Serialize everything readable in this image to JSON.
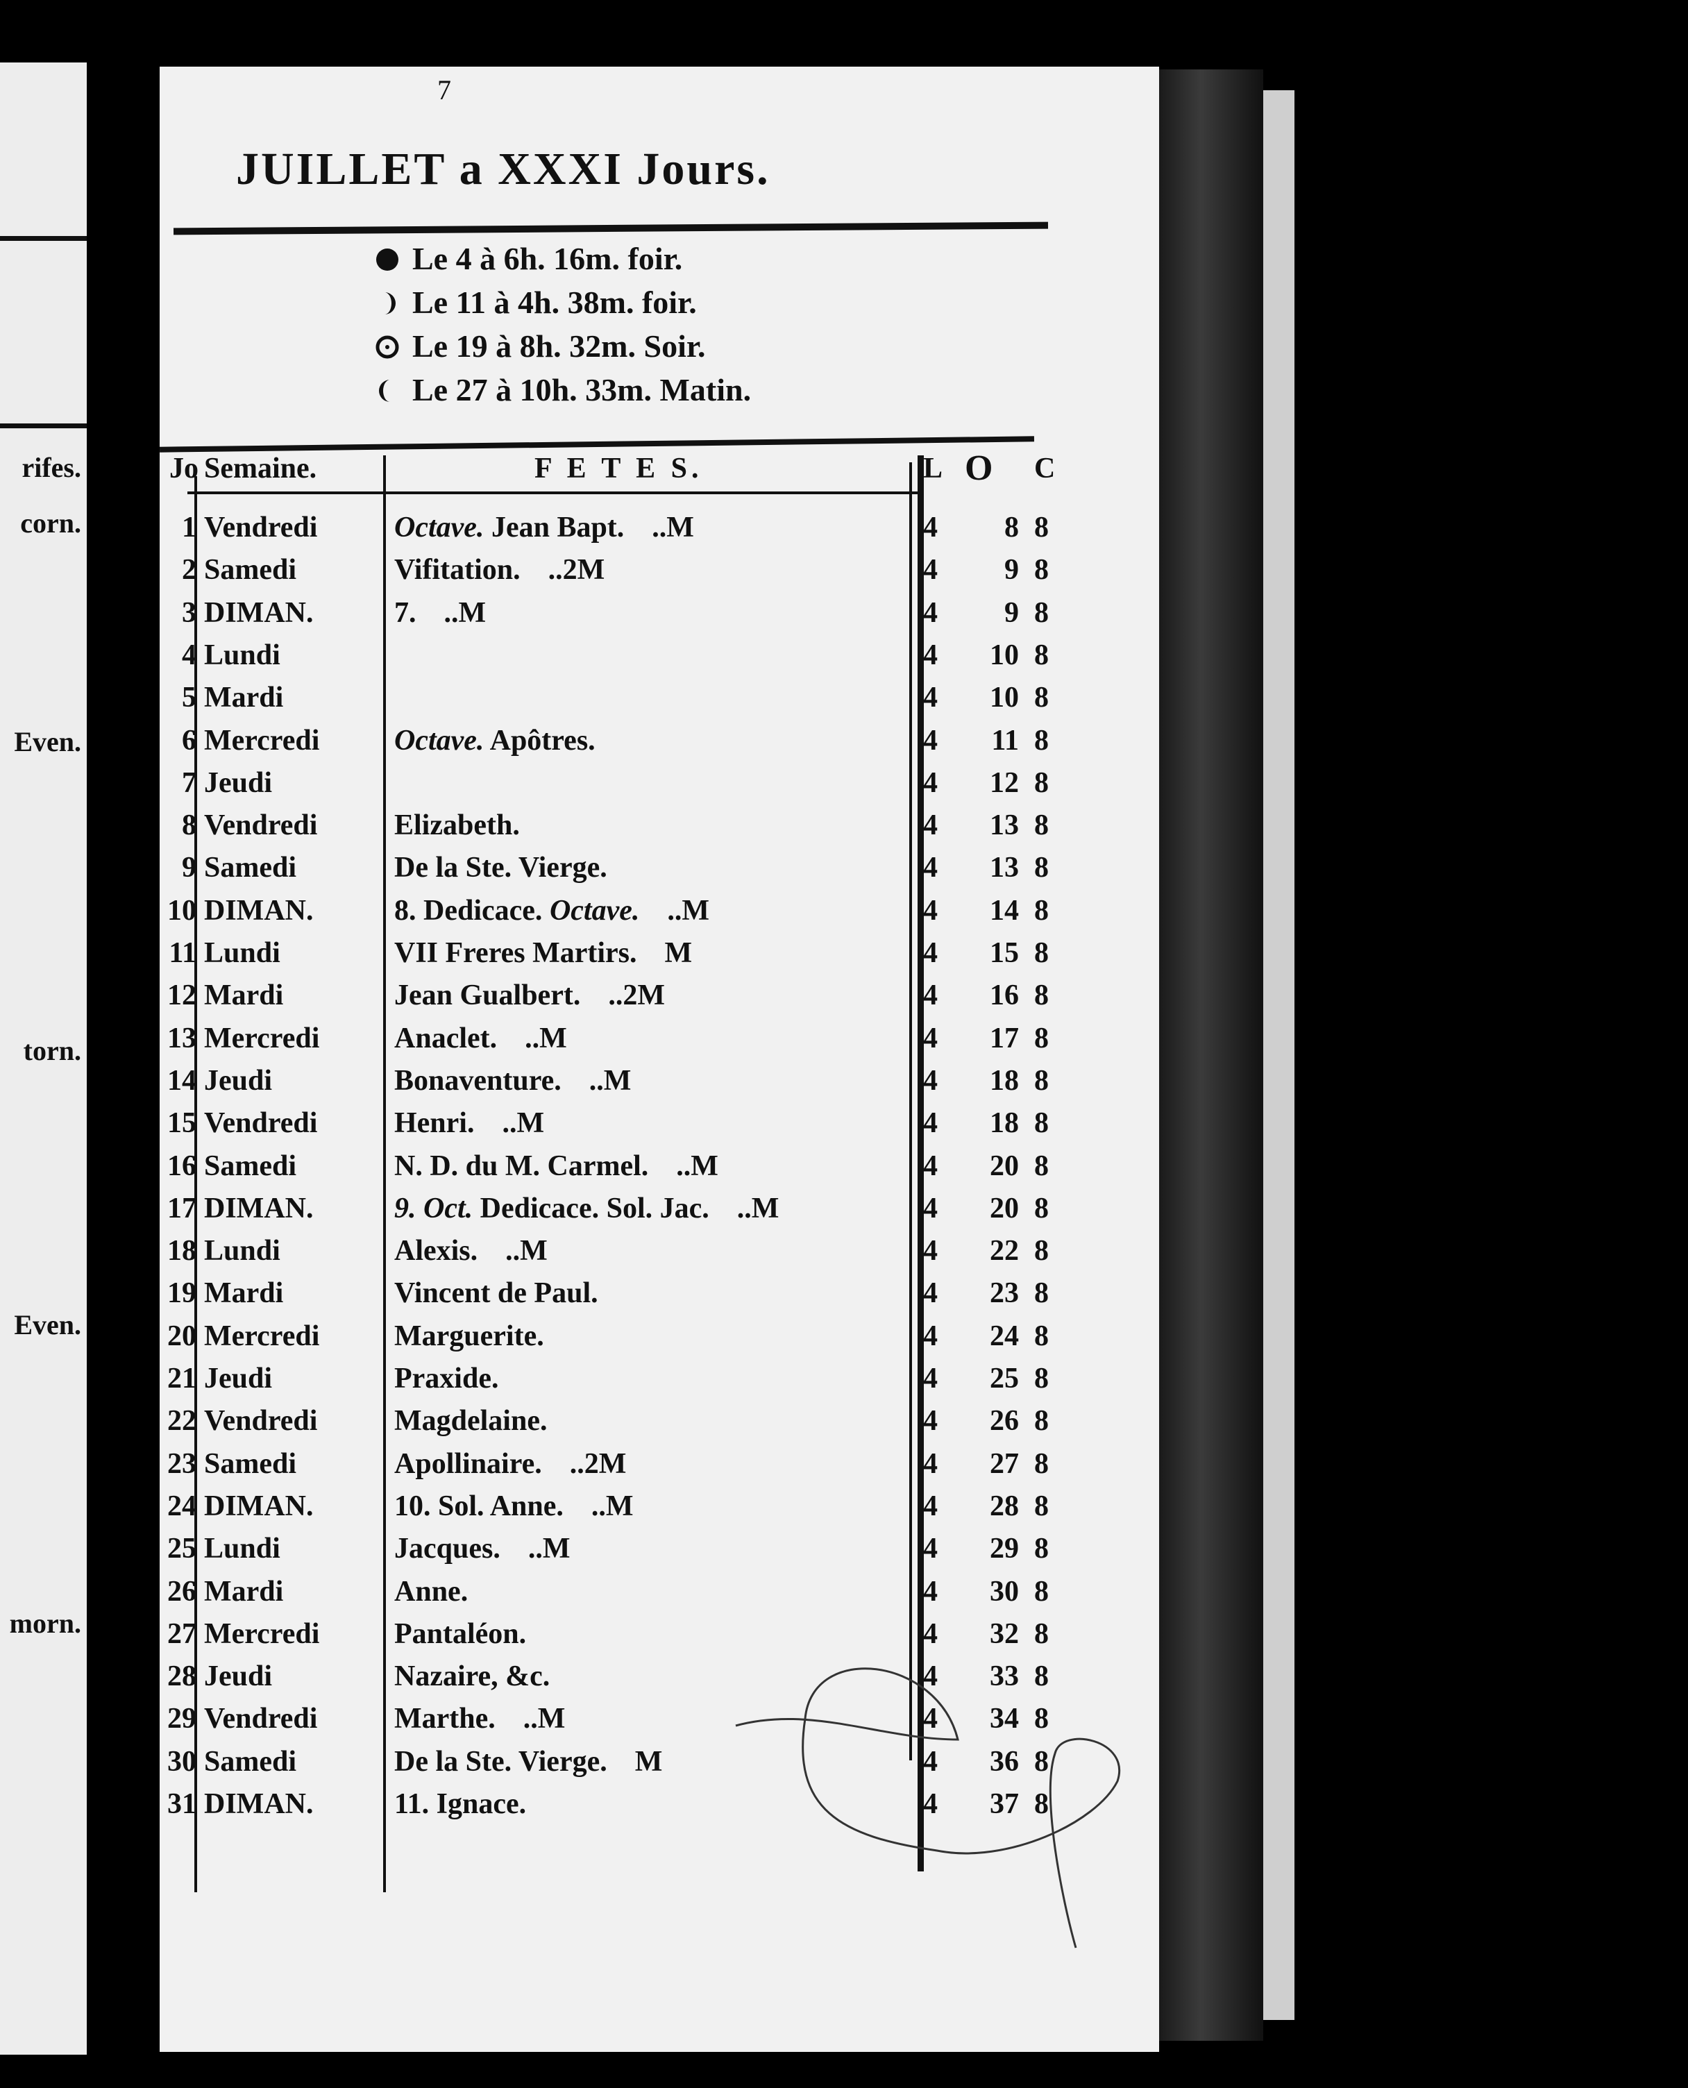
{
  "left_page_fragments": [
    "rifes.",
    "corn.",
    "Even.",
    "torn.",
    "Even.",
    "morn."
  ],
  "page_number": "7",
  "title": "JUILLET a XXXI Jours.",
  "moon_phases": [
    {
      "icon": "new-moon-icon",
      "text": "Le 4 à 6h. 16m. foir."
    },
    {
      "icon": "first-quarter-icon",
      "text": "Le 11 à 4h. 38m. foir."
    },
    {
      "icon": "full-moon-icon",
      "text": "Le 19 à 8h. 32m. Soir."
    },
    {
      "icon": "last-quarter-icon",
      "text": "Le 27 à 10h. 33m. Matin."
    }
  ],
  "table": {
    "headers": {
      "jo": "Jo",
      "semaine": "Semaine.",
      "fetes": "F E T E S.",
      "l": "L",
      "o": "O",
      "c": "C"
    },
    "rows": [
      {
        "jo": "1",
        "semaine": "Vendredi",
        "fete_italic": "Octave.",
        "fete": " Jean Bapt.",
        "mark": "..M",
        "l": "4",
        "o": "8",
        "c": "8"
      },
      {
        "jo": "2",
        "semaine": "Samedi",
        "fete": "Vifitation.",
        "mark": "..2M",
        "l": "4",
        "o": "9",
        "c": "8"
      },
      {
        "jo": "3",
        "semaine": "DIMAN.",
        "fete": "7.",
        "mark": "..M",
        "l": "4",
        "o": "9",
        "c": "8"
      },
      {
        "jo": "4",
        "semaine": "Lundi",
        "fete": "",
        "mark": "",
        "l": "4",
        "o": "10",
        "c": "8"
      },
      {
        "jo": "5",
        "semaine": "Mardi",
        "fete": "",
        "mark": "",
        "l": "4",
        "o": "10",
        "c": "8"
      },
      {
        "jo": "6",
        "semaine": "Mercredi",
        "fete_italic": "Octave.",
        "fete": " Apôtres.",
        "mark": "",
        "l": "4",
        "o": "11",
        "c": "8"
      },
      {
        "jo": "7",
        "semaine": "Jeudi",
        "fete": "",
        "mark": "",
        "l": "4",
        "o": "12",
        "c": "8"
      },
      {
        "jo": "8",
        "semaine": "Vendredi",
        "fete": "Elizabeth.",
        "mark": "",
        "l": "4",
        "o": "13",
        "c": "8"
      },
      {
        "jo": "9",
        "semaine": "Samedi",
        "fete": "De la Ste. Vierge.",
        "mark": "",
        "l": "4",
        "o": "13",
        "c": "8"
      },
      {
        "jo": "10",
        "semaine": "DIMAN.",
        "fete": "8. Dedicace. ",
        "fete_italic2": "Octave.",
        "mark": "..M",
        "l": "4",
        "o": "14",
        "c": "8"
      },
      {
        "jo": "11",
        "semaine": "Lundi",
        "fete": "VII Freres Martirs.",
        "mark": "M",
        "l": "4",
        "o": "15",
        "c": "8"
      },
      {
        "jo": "12",
        "semaine": "Mardi",
        "fete": "Jean Gualbert.",
        "mark": "..2M",
        "l": "4",
        "o": "16",
        "c": "8"
      },
      {
        "jo": "13",
        "semaine": "Mercredi",
        "fete": "Anaclet.",
        "mark": "..M",
        "l": "4",
        "o": "17",
        "c": "8"
      },
      {
        "jo": "14",
        "semaine": "Jeudi",
        "fete": "Bonaventure.",
        "mark": "..M",
        "l": "4",
        "o": "18",
        "c": "8"
      },
      {
        "jo": "15",
        "semaine": "Vendredi",
        "fete": "Henri.",
        "mark": "..M",
        "l": "4",
        "o": "18",
        "c": "8"
      },
      {
        "jo": "16",
        "semaine": "Samedi",
        "fete": "N. D. du M. Carmel.",
        "mark": "..M",
        "l": "4",
        "o": "20",
        "c": "8"
      },
      {
        "jo": "17",
        "semaine": "DIMAN.",
        "fete_italic": "9. Oct.",
        "fete": " Dedicace. Sol. Jac.",
        "mark": "..M",
        "l": "4",
        "o": "20",
        "c": "8"
      },
      {
        "jo": "18",
        "semaine": "Lundi",
        "fete": "Alexis.",
        "mark": "..M",
        "l": "4",
        "o": "22",
        "c": "8"
      },
      {
        "jo": "19",
        "semaine": "Mardi",
        "fete": "Vincent de Paul.",
        "mark": "",
        "l": "4",
        "o": "23",
        "c": "8"
      },
      {
        "jo": "20",
        "semaine": "Mercredi",
        "fete": "Marguerite.",
        "mark": "",
        "l": "4",
        "o": "24",
        "c": "8"
      },
      {
        "jo": "21",
        "semaine": "Jeudi",
        "fete": "Praxide.",
        "mark": "",
        "l": "4",
        "o": "25",
        "c": "8"
      },
      {
        "jo": "22",
        "semaine": "Vendredi",
        "fete": "Magdelaine.",
        "mark": "",
        "l": "4",
        "o": "26",
        "c": "8"
      },
      {
        "jo": "23",
        "semaine": "Samedi",
        "fete": "Apollinaire.",
        "mark": "..2M",
        "l": "4",
        "o": "27",
        "c": "8"
      },
      {
        "jo": "24",
        "semaine": "DIMAN.",
        "fete": "10. Sol. Anne.",
        "mark": "..M",
        "l": "4",
        "o": "28",
        "c": "8"
      },
      {
        "jo": "25",
        "semaine": "Lundi",
        "fete": "Jacques.",
        "mark": "..M",
        "l": "4",
        "o": "29",
        "c": "8"
      },
      {
        "jo": "26",
        "semaine": "Mardi",
        "fete": "Anne.",
        "mark": "",
        "l": "4",
        "o": "30",
        "c": "8"
      },
      {
        "jo": "27",
        "semaine": "Mercredi",
        "fete": "Pantaléon.",
        "mark": "",
        "l": "4",
        "o": "32",
        "c": "8"
      },
      {
        "jo": "28",
        "semaine": "Jeudi",
        "fete": "Nazaire, &c.",
        "mark": "",
        "l": "4",
        "o": "33",
        "c": "8"
      },
      {
        "jo": "29",
        "semaine": "Vendredi",
        "fete": "Marthe.",
        "mark": "..M",
        "l": "4",
        "o": "34",
        "c": "8"
      },
      {
        "jo": "30",
        "semaine": "Samedi",
        "fete": "De la Ste. Vierge.",
        "mark": "M",
        "l": "4",
        "o": "36",
        "c": "8"
      },
      {
        "jo": "31",
        "semaine": "DIMAN.",
        "fete": "11. Ignace.",
        "mark": "",
        "l": "4",
        "o": "37",
        "c": "8"
      }
    ]
  }
}
